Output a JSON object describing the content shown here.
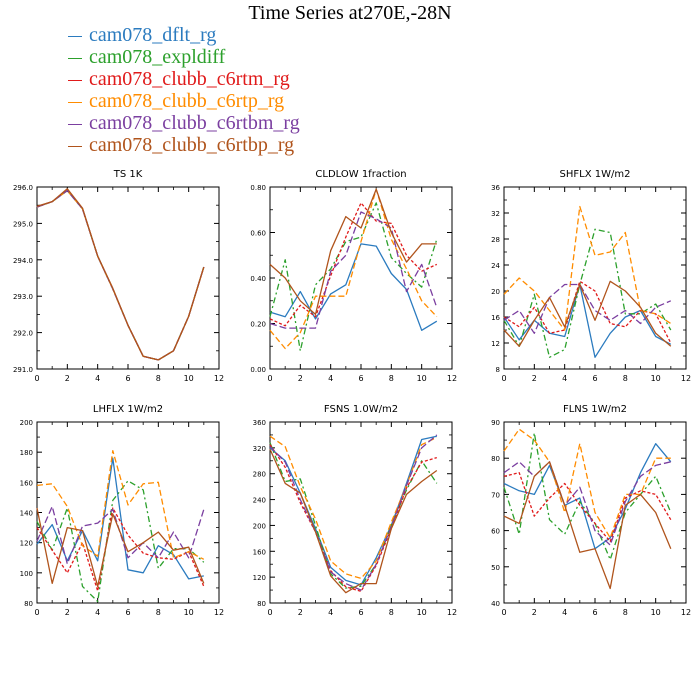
{
  "title": "Time Series at270E,-28N",
  "legend": [
    {
      "name": "cam078_dflt_rg",
      "color": "#2b7bbf"
    },
    {
      "name": "cam078_expldiff",
      "color": "#2ca02c"
    },
    {
      "name": "cam078_clubb_c6rtm_rg",
      "color": "#e01a1a"
    },
    {
      "name": "cam078_clubb_c6rtp_rg",
      "color": "#ff8c00"
    },
    {
      "name": "cam078_clubb_c6rtbm_rg",
      "color": "#7b3fa0"
    },
    {
      "name": "cam078_clubb_c6rtbp_rg",
      "color": "#b0541c"
    }
  ],
  "chart_data": [
    {
      "type": "line",
      "title": "TS   1K",
      "x": [
        0,
        1,
        2,
        3,
        4,
        5,
        6,
        7,
        8,
        9,
        10,
        11
      ],
      "xlim": [
        0,
        12
      ],
      "xticks": [
        "0",
        "2",
        "4",
        "6",
        "8",
        "10",
        "12"
      ],
      "ylim": [
        291,
        296
      ],
      "yticks": [
        "291.0",
        "292.0",
        "293.0",
        "294.0",
        "295.0",
        "296.0"
      ],
      "series": [
        {
          "name": "cam078_dflt_rg",
          "values": [
            295.45,
            295.6,
            295.9,
            295.4,
            294.1,
            293.2,
            292.2,
            291.35,
            291.25,
            291.5,
            292.45,
            293.8
          ]
        },
        {
          "name": "cam078_expldiff",
          "values": [
            295.45,
            295.6,
            295.9,
            295.4,
            294.1,
            293.2,
            292.2,
            291.35,
            291.25,
            291.5,
            292.45,
            293.8
          ]
        },
        {
          "name": "cam078_clubb_c6rtm_rg",
          "values": [
            295.45,
            295.6,
            295.92,
            295.4,
            294.1,
            293.2,
            292.2,
            291.35,
            291.25,
            291.5,
            292.45,
            293.8
          ]
        },
        {
          "name": "cam078_clubb_c6rtp_rg",
          "values": [
            295.45,
            295.6,
            295.9,
            295.4,
            294.1,
            293.2,
            292.2,
            291.35,
            291.25,
            291.5,
            292.45,
            293.8
          ]
        },
        {
          "name": "cam078_clubb_c6rtbm_rg",
          "values": [
            295.45,
            295.6,
            295.9,
            295.4,
            294.1,
            293.2,
            292.2,
            291.35,
            291.25,
            291.5,
            292.45,
            293.8
          ]
        },
        {
          "name": "cam078_clubb_c6rtbp_rg",
          "values": [
            295.47,
            295.6,
            295.95,
            295.42,
            294.1,
            293.22,
            292.2,
            291.35,
            291.25,
            291.5,
            292.45,
            293.8
          ]
        }
      ]
    },
    {
      "type": "line",
      "title": "CLDLOW   1fraction",
      "x": [
        0,
        1,
        2,
        3,
        4,
        5,
        6,
        7,
        8,
        9,
        10,
        11
      ],
      "xlim": [
        0,
        12
      ],
      "xticks": [
        "0",
        "2",
        "4",
        "6",
        "8",
        "10",
        "12"
      ],
      "ylim": [
        0,
        0.8
      ],
      "yticks": [
        "0.00",
        "0.20",
        "0.40",
        "0.60",
        "0.80"
      ],
      "series": [
        {
          "name": "cam078_dflt_rg",
          "values": [
            0.25,
            0.23,
            0.34,
            0.22,
            0.33,
            0.37,
            0.55,
            0.54,
            0.42,
            0.35,
            0.17,
            0.21
          ]
        },
        {
          "name": "cam078_expldiff",
          "values": [
            0.23,
            0.48,
            0.08,
            0.37,
            0.44,
            0.56,
            0.58,
            0.73,
            0.49,
            0.42,
            0.36,
            0.57
          ]
        },
        {
          "name": "cam078_clubb_c6rtm_rg",
          "values": [
            0.22,
            0.19,
            0.28,
            0.23,
            0.41,
            0.58,
            0.73,
            0.65,
            0.64,
            0.5,
            0.43,
            0.46
          ]
        },
        {
          "name": "cam078_clubb_c6rtp_rg",
          "values": [
            0.17,
            0.09,
            0.16,
            0.32,
            0.32,
            0.32,
            0.56,
            0.79,
            0.57,
            0.44,
            0.3,
            0.23
          ]
        },
        {
          "name": "cam078_clubb_c6rtbm_rg",
          "values": [
            0.2,
            0.18,
            0.18,
            0.18,
            0.43,
            0.5,
            0.69,
            0.66,
            0.62,
            0.34,
            0.46,
            0.27
          ]
        },
        {
          "name": "cam078_clubb_c6rtbp_rg",
          "values": [
            0.46,
            0.4,
            0.3,
            0.24,
            0.52,
            0.67,
            0.62,
            0.79,
            0.6,
            0.47,
            0.55,
            0.55
          ]
        }
      ]
    },
    {
      "type": "line",
      "title": "SHFLX   1W/m2",
      "x": [
        0,
        1,
        2,
        3,
        4,
        5,
        6,
        7,
        8,
        9,
        10,
        11
      ],
      "xlim": [
        0,
        12
      ],
      "xticks": [
        "0",
        "2",
        "4",
        "6",
        "8",
        "10",
        "12"
      ],
      "ylim": [
        8,
        36
      ],
      "yticks": [
        "8",
        "12",
        "16",
        "20",
        "24",
        "28",
        "32",
        "36"
      ],
      "series": [
        {
          "name": "cam078_dflt_rg",
          "values": [
            16,
            12.5,
            15.5,
            13.5,
            13,
            21,
            9.8,
            13.5,
            16,
            17,
            13,
            11.8
          ]
        },
        {
          "name": "cam078_expldiff",
          "values": [
            15.5,
            11.5,
            19.5,
            9.8,
            11,
            21,
            29.5,
            29,
            16.5,
            16.5,
            18,
            14
          ]
        },
        {
          "name": "cam078_clubb_c6rtm_rg",
          "values": [
            16,
            14.5,
            17.5,
            13.5,
            14,
            21.5,
            20,
            15,
            14.5,
            17,
            16.5,
            12
          ]
        },
        {
          "name": "cam078_clubb_c6rtp_rg",
          "values": [
            19.5,
            22,
            20,
            17,
            14,
            33,
            25.5,
            26,
            29,
            17,
            16.5,
            15
          ]
        },
        {
          "name": "cam078_clubb_c6rtbm_rg",
          "values": [
            15.5,
            17,
            13.5,
            19,
            21,
            21,
            17,
            15.5,
            17,
            15,
            17.5,
            18.5
          ]
        },
        {
          "name": "cam078_clubb_c6rtbp_rg",
          "values": [
            14,
            11.5,
            15.5,
            19,
            14.5,
            21,
            15.5,
            21.5,
            20,
            17.5,
            13.5,
            11.5
          ]
        }
      ]
    },
    {
      "type": "line",
      "title": "LHFLX   1W/m2",
      "x": [
        0,
        1,
        2,
        3,
        4,
        5,
        6,
        7,
        8,
        9,
        10,
        11
      ],
      "xlim": [
        0,
        12
      ],
      "xticks": [
        "0",
        "2",
        "4",
        "6",
        "8",
        "10",
        "12"
      ],
      "ylim": [
        80,
        200
      ],
      "yticks": [
        "80",
        "100",
        "120",
        "140",
        "160",
        "180",
        "200"
      ],
      "series": [
        {
          "name": "cam078_dflt_rg",
          "values": [
            119,
            132,
            108,
            128,
            108,
            176,
            102,
            100,
            118,
            112,
            96,
            98
          ]
        },
        {
          "name": "cam078_expldiff",
          "values": [
            134,
            115,
            143,
            91,
            81,
            148,
            161,
            155,
            103,
            116,
            116,
            107
          ]
        },
        {
          "name": "cam078_clubb_c6rtm_rg",
          "values": [
            130,
            115,
            100,
            120,
            88,
            143,
            125,
            113,
            110,
            109,
            114,
            91
          ]
        },
        {
          "name": "cam078_clubb_c6rtp_rg",
          "values": [
            158,
            159,
            144,
            118,
            111,
            181,
            145,
            159,
            160,
            110,
            114,
            109
          ]
        },
        {
          "name": "cam078_clubb_c6rtbm_rg",
          "values": [
            121,
            144,
            106,
            131,
            133,
            142,
            110,
            120,
            110,
            127,
            110,
            142
          ]
        },
        {
          "name": "cam078_clubb_c6rtbp_rg",
          "values": [
            143,
            93,
            130,
            128,
            91,
            139,
            114,
            120,
            127,
            115,
            117,
            93
          ]
        }
      ]
    },
    {
      "type": "line",
      "title": "FSNS   1.0W/m2",
      "x": [
        0,
        1,
        2,
        3,
        4,
        5,
        6,
        7,
        8,
        9,
        10,
        11
      ],
      "xlim": [
        0,
        12
      ],
      "xticks": [
        "0",
        "2",
        "4",
        "6",
        "8",
        "10",
        "12"
      ],
      "ylim": [
        80,
        360
      ],
      "yticks": [
        "80",
        "120",
        "160",
        "200",
        "240",
        "280",
        "320",
        "360"
      ],
      "series": [
        {
          "name": "cam078_dflt_rg",
          "values": [
            320,
            300,
            250,
            195,
            135,
            115,
            108,
            150,
            200,
            265,
            333,
            338
          ]
        },
        {
          "name": "cam078_expldiff",
          "values": [
            328,
            268,
            272,
            200,
            125,
            103,
            106,
            140,
            200,
            255,
            300,
            265
          ]
        },
        {
          "name": "cam078_clubb_c6rtm_rg",
          "values": [
            325,
            290,
            235,
            190,
            130,
            105,
            98,
            138,
            195,
            258,
            298,
            305
          ]
        },
        {
          "name": "cam078_clubb_c6rtp_rg",
          "values": [
            338,
            322,
            260,
            210,
            145,
            125,
            118,
            145,
            205,
            262,
            325,
            336
          ]
        },
        {
          "name": "cam078_clubb_c6rtbm_rg",
          "values": [
            322,
            298,
            240,
            190,
            128,
            110,
            100,
            140,
            198,
            262,
            320,
            340
          ]
        },
        {
          "name": "cam078_clubb_c6rtbp_rg",
          "values": [
            318,
            265,
            250,
            190,
            122,
            96,
            110,
            110,
            195,
            248,
            268,
            285
          ]
        }
      ]
    },
    {
      "type": "line",
      "title": "FLNS   1W/m2",
      "x": [
        0,
        1,
        2,
        3,
        4,
        5,
        6,
        7,
        8,
        9,
        10,
        11
      ],
      "xlim": [
        0,
        12
      ],
      "xticks": [
        "0",
        "2",
        "4",
        "6",
        "8",
        "10",
        "12"
      ],
      "ylim": [
        40,
        90
      ],
      "yticks": [
        "40",
        "50",
        "60",
        "70",
        "80",
        "90"
      ],
      "series": [
        {
          "name": "cam078_dflt_rg",
          "values": [
            73,
            71,
            70,
            78,
            67,
            69,
            55,
            58,
            66,
            76,
            84,
            79
          ]
        },
        {
          "name": "cam078_expldiff",
          "values": [
            72,
            59,
            87,
            63,
            59,
            68,
            62,
            52,
            65,
            70,
            75,
            65
          ]
        },
        {
          "name": "cam078_clubb_c6rtm_rg",
          "values": [
            75,
            76,
            64,
            69,
            73,
            67,
            62,
            57,
            69,
            71,
            70,
            63
          ]
        },
        {
          "name": "cam078_clubb_c6rtp_rg",
          "values": [
            82,
            88,
            85,
            79,
            65,
            84,
            65,
            58,
            70,
            70,
            80,
            80
          ]
        },
        {
          "name": "cam078_clubb_c6rtbm_rg",
          "values": [
            76,
            79,
            75,
            79,
            67,
            72,
            60,
            56,
            68,
            75,
            78,
            79
          ]
        },
        {
          "name": "cam078_clubb_c6rtbp_rg",
          "values": [
            64,
            62,
            75,
            79,
            67,
            54,
            55,
            44,
            67,
            70,
            65,
            55
          ]
        }
      ]
    }
  ]
}
